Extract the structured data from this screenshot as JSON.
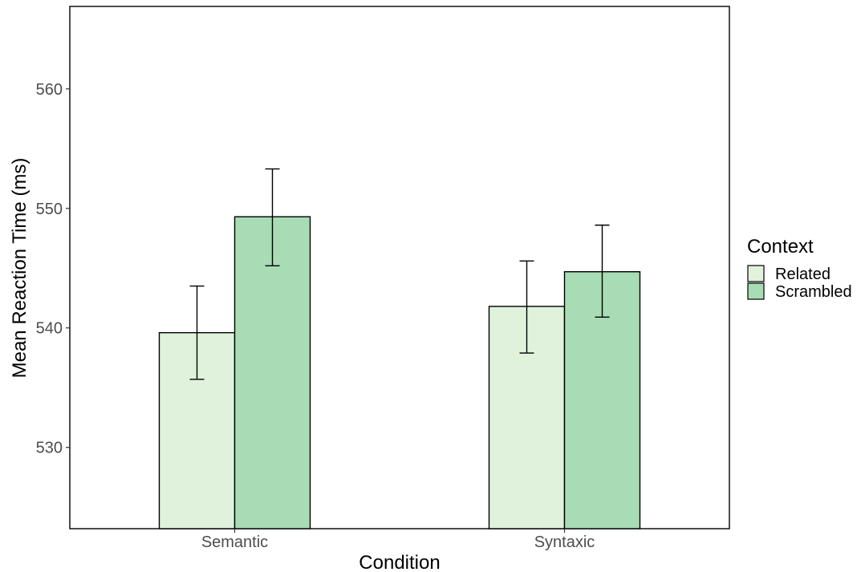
{
  "chart_data": {
    "type": "bar",
    "xlabel": "Condition",
    "ylabel": "Mean Reaction Time (ms)",
    "categories": [
      "Semantic",
      "Syntaxic"
    ],
    "series": [
      {
        "name": "Related",
        "color": "#e0f2dc",
        "values": [
          539.6,
          541.8
        ],
        "error_low": [
          535.7,
          537.9
        ],
        "error_high": [
          543.5,
          545.6
        ]
      },
      {
        "name": "Scrambled",
        "color": "#a8dcb4",
        "values": [
          549.3,
          544.7
        ],
        "error_low": [
          545.2,
          540.9
        ],
        "error_high": [
          553.3,
          548.6
        ]
      }
    ],
    "ylim": [
      523.2,
      566.9
    ],
    "yticks": [
      530,
      540,
      550,
      560
    ],
    "grid": false,
    "legend": {
      "title": "Context",
      "position": "right"
    }
  }
}
